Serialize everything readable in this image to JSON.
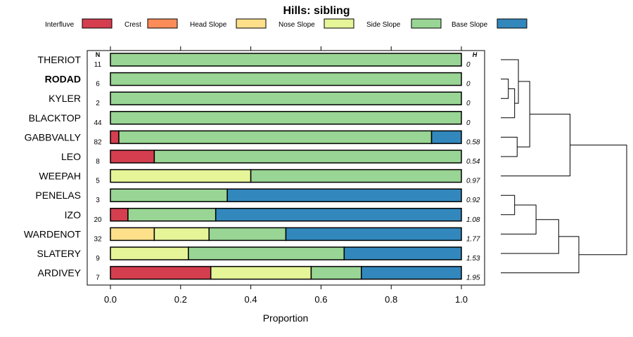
{
  "chart_data": {
    "type": "bar",
    "subtype": "stacked-horizontal-proportion",
    "title": "Hills: sibling",
    "xlabel": "Proportion",
    "xlim": [
      0,
      1
    ],
    "xticks": [
      "0.0",
      "0.2",
      "0.4",
      "0.6",
      "0.8",
      "1.0"
    ],
    "n_header": "N",
    "h_header": "H",
    "legend": [
      {
        "name": "Interfluve",
        "color": "#D53E4F"
      },
      {
        "name": "Crest",
        "color": "#FC8D59"
      },
      {
        "name": "Head Slope",
        "color": "#FEE08B"
      },
      {
        "name": "Nose Slope",
        "color": "#E6F598"
      },
      {
        "name": "Side Slope",
        "color": "#99D594"
      },
      {
        "name": "Base Slope",
        "color": "#3288BD"
      }
    ],
    "rows": [
      {
        "label": "THERIOT",
        "bold": false,
        "n": "11",
        "h": "0",
        "values": [
          0,
          0,
          0,
          0,
          1.0,
          0
        ]
      },
      {
        "label": "RODAD",
        "bold": true,
        "n": "6",
        "h": "0",
        "values": [
          0,
          0,
          0,
          0,
          1.0,
          0
        ]
      },
      {
        "label": "KYLER",
        "bold": false,
        "n": "2",
        "h": "0",
        "values": [
          0,
          0,
          0,
          0,
          1.0,
          0
        ]
      },
      {
        "label": "BLACKTOP",
        "bold": false,
        "n": "44",
        "h": "0",
        "values": [
          0,
          0,
          0,
          0,
          1.0,
          0
        ]
      },
      {
        "label": "GABBVALLY",
        "bold": false,
        "n": "82",
        "h": "0.58",
        "values": [
          0.024,
          0,
          0,
          0,
          0.891,
          0.085
        ]
      },
      {
        "label": "LEO",
        "bold": false,
        "n": "8",
        "h": "0.54",
        "values": [
          0.125,
          0,
          0,
          0,
          0.875,
          0
        ]
      },
      {
        "label": "WEEPAH",
        "bold": false,
        "n": "5",
        "h": "0.97",
        "values": [
          0,
          0,
          0,
          0.4,
          0.6,
          0
        ]
      },
      {
        "label": "PENELAS",
        "bold": false,
        "n": "3",
        "h": "0.92",
        "values": [
          0,
          0,
          0,
          0,
          0.333,
          0.667
        ]
      },
      {
        "label": "IZO",
        "bold": false,
        "n": "20",
        "h": "1.08",
        "values": [
          0.05,
          0,
          0,
          0,
          0.25,
          0.7
        ]
      },
      {
        "label": "WARDENOT",
        "bold": false,
        "n": "32",
        "h": "1.77",
        "values": [
          0,
          0,
          0.125,
          0.156,
          0.219,
          0.5
        ]
      },
      {
        "label": "SLATERY",
        "bold": false,
        "n": "9",
        "h": "1.53",
        "values": [
          0,
          0,
          0,
          0.222,
          0.444,
          0.334
        ]
      },
      {
        "label": "ARDIVEY",
        "bold": false,
        "n": "7",
        "h": "1.95",
        "values": [
          0.286,
          0,
          0,
          0.286,
          0.143,
          0.285
        ]
      }
    ],
    "dendrogram": {
      "note": "hierarchical clustering of rows; heights on a relative 0-1 scale",
      "merges": [
        {
          "a": "RODAD",
          "b": "KYLER",
          "height": 0.06
        },
        {
          "a": [
            "RODAD",
            "KYLER"
          ],
          "b": "BLACKTOP",
          "height": 0.11
        },
        {
          "a": "THERIOT",
          "b": [
            "RODAD",
            "KYLER",
            "BLACKTOP"
          ],
          "height": 0.14
        },
        {
          "a": "GABBVALLY",
          "b": "LEO",
          "height": 0.13
        },
        {
          "a": [
            "THERIOT",
            "RODAD",
            "KYLER",
            "BLACKTOP"
          ],
          "b": [
            "GABBVALLY",
            "LEO"
          ],
          "height": 0.23
        },
        {
          "a": [
            "THERIOT",
            "RODAD",
            "KYLER",
            "BLACKTOP",
            "GABBVALLY",
            "LEO"
          ],
          "b": "WEEPAH",
          "height": 0.55
        },
        {
          "a": "PENELAS",
          "b": "IZO",
          "height": 0.11
        },
        {
          "a": [
            "PENELAS",
            "IZO"
          ],
          "b": "WARDENOT",
          "height": 0.28
        },
        {
          "a": [
            "PENELAS",
            "IZO",
            "WARDENOT"
          ],
          "b": "SLATERY",
          "height": 0.46
        },
        {
          "a": [
            "PENELAS",
            "IZO",
            "WARDENOT",
            "SLATERY"
          ],
          "b": "ARDIVEY",
          "height": 0.62
        },
        {
          "a": [
            "THERIOT",
            "RODAD",
            "KYLER",
            "BLACKTOP",
            "GABBVALLY",
            "LEO",
            "WEEPAH"
          ],
          "b": [
            "PENELAS",
            "IZO",
            "WARDENOT",
            "SLATERY",
            "ARDIVEY"
          ],
          "height": 1.0
        }
      ]
    }
  }
}
